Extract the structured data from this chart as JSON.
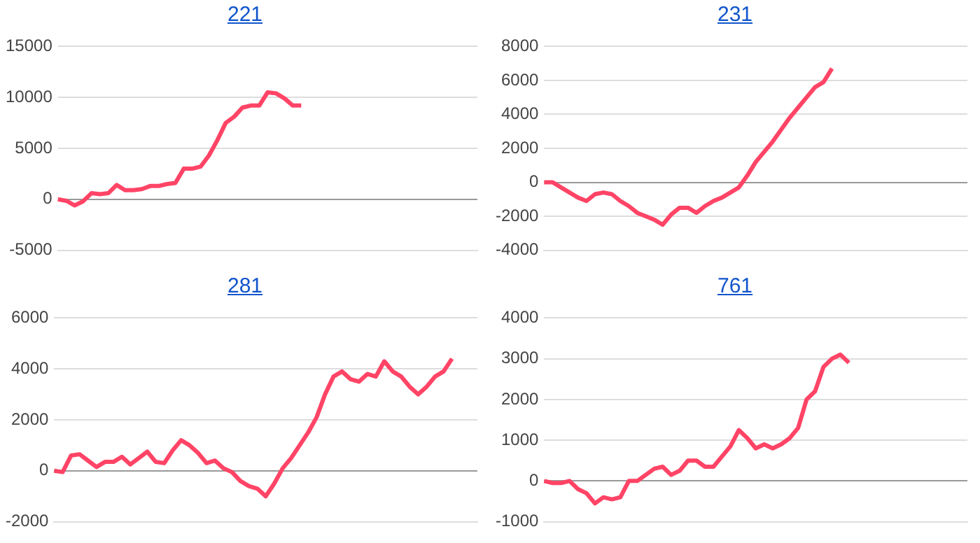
{
  "chart_data": [
    {
      "type": "line",
      "title": "221",
      "categories": [
        null,
        null,
        null,
        null,
        null,
        null,
        null,
        null,
        null,
        null,
        null,
        null,
        null,
        null,
        null,
        null,
        null,
        null,
        null,
        null,
        null,
        null,
        null,
        null,
        null,
        null,
        null,
        null,
        null,
        null,
        null,
        null,
        null,
        null,
        null,
        null,
        null,
        null,
        null,
        null,
        null,
        null,
        null,
        null,
        null,
        null,
        null,
        null,
        null,
        null,
        null
      ],
      "series": [
        {
          "color": "#ff4466",
          "values": [
            0,
            -150,
            -600,
            -200,
            600,
            500,
            600,
            1400,
            900,
            900,
            1000,
            1300,
            1300,
            1500,
            1600,
            3000,
            3000,
            3200,
            4300,
            5800,
            7500,
            8100,
            9000,
            9200,
            9200,
            10500,
            10400,
            9900,
            9200,
            9200,
            null,
            null,
            null,
            null,
            null,
            null,
            null,
            null,
            null,
            null,
            null,
            null,
            null,
            null,
            null,
            null,
            null,
            null,
            null,
            null,
            null
          ]
        }
      ],
      "ylim": [
        -5000,
        15000
      ],
      "yticks": [
        -5000,
        0,
        5000,
        10000,
        15000
      ],
      "grid": "y",
      "tick_labels": "y",
      "marker": "none"
    },
    {
      "type": "line",
      "title": "231",
      "categories": [
        null,
        null,
        null,
        null,
        null,
        null,
        null,
        null,
        null,
        null,
        null,
        null,
        null,
        null,
        null,
        null,
        null,
        null,
        null,
        null,
        null,
        null,
        null,
        null,
        null,
        null,
        null,
        null,
        null,
        null,
        null,
        null,
        null,
        null,
        null,
        null,
        null,
        null,
        null,
        null,
        null,
        null,
        null,
        null,
        null,
        null,
        null,
        null,
        null,
        null,
        null
      ],
      "series": [
        {
          "color": "#ff4466",
          "values": [
            0,
            0,
            -300,
            -600,
            -900,
            -1100,
            -700,
            -600,
            -700,
            -1100,
            -1400,
            -1800,
            -2000,
            -2200,
            -2500,
            -1900,
            -1500,
            -1500,
            -1800,
            -1400,
            -1100,
            -900,
            -600,
            -300,
            400,
            1200,
            1800,
            2400,
            3100,
            3800,
            4400,
            5000,
            5600,
            5900,
            6700,
            null,
            null,
            null,
            null,
            null,
            null,
            null,
            null,
            null,
            null,
            null,
            null,
            null,
            null,
            null,
            null
          ]
        }
      ],
      "ylim": [
        -4000,
        8000
      ],
      "yticks": [
        -4000,
        -2000,
        0,
        2000,
        4000,
        6000,
        8000
      ],
      "grid": "y",
      "tick_labels": "y",
      "marker": "none"
    },
    {
      "type": "line",
      "title": "281",
      "categories": [
        null,
        null,
        null,
        null,
        null,
        null,
        null,
        null,
        null,
        null,
        null,
        null,
        null,
        null,
        null,
        null,
        null,
        null,
        null,
        null,
        null,
        null,
        null,
        null,
        null,
        null,
        null,
        null,
        null,
        null,
        null,
        null,
        null,
        null,
        null,
        null,
        null,
        null,
        null,
        null,
        null,
        null,
        null,
        null,
        null,
        null,
        null,
        null,
        null,
        null,
        null
      ],
      "series": [
        {
          "color": "#ff4466",
          "values": [
            0,
            -50,
            600,
            650,
            400,
            150,
            350,
            350,
            550,
            250,
            500,
            750,
            350,
            300,
            800,
            1200,
            1000,
            700,
            300,
            400,
            100,
            -50,
            -400,
            -600,
            -700,
            -1000,
            -500,
            100,
            500,
            1000,
            1500,
            2100,
            3000,
            3700,
            3900,
            3600,
            3500,
            3800,
            3700,
            4300,
            3900,
            3700,
            3300,
            3000,
            3300,
            3700,
            3900,
            4400,
            null,
            null,
            null
          ]
        }
      ],
      "ylim": [
        -2000,
        6000
      ],
      "yticks": [
        -2000,
        0,
        2000,
        4000,
        6000
      ],
      "grid": "y",
      "tick_labels": "y",
      "marker": "none"
    },
    {
      "type": "line",
      "title": "761",
      "categories": [
        null,
        null,
        null,
        null,
        null,
        null,
        null,
        null,
        null,
        null,
        null,
        null,
        null,
        null,
        null,
        null,
        null,
        null,
        null,
        null,
        null,
        null,
        null,
        null,
        null,
        null,
        null,
        null,
        null,
        null,
        null,
        null,
        null,
        null,
        null,
        null,
        null,
        null,
        null,
        null,
        null,
        null,
        null,
        null,
        null,
        null,
        null,
        null,
        null,
        null,
        null
      ],
      "series": [
        {
          "color": "#ff4466",
          "values": [
            0,
            -50,
            -50,
            0,
            -200,
            -300,
            -550,
            -400,
            -450,
            -400,
            0,
            0,
            150,
            300,
            350,
            150,
            250,
            500,
            500,
            350,
            350,
            600,
            850,
            1250,
            1050,
            800,
            900,
            800,
            900,
            1050,
            1300,
            2000,
            2200,
            2800,
            3000,
            3100,
            2900,
            null,
            null,
            null,
            null,
            null,
            null,
            null,
            null,
            null,
            null,
            null,
            null,
            null,
            null
          ]
        }
      ],
      "ylim": [
        -1000,
        4000
      ],
      "yticks": [
        -1000,
        0,
        1000,
        2000,
        3000,
        4000
      ],
      "grid": "y",
      "tick_labels": "y",
      "marker": "none"
    }
  ]
}
